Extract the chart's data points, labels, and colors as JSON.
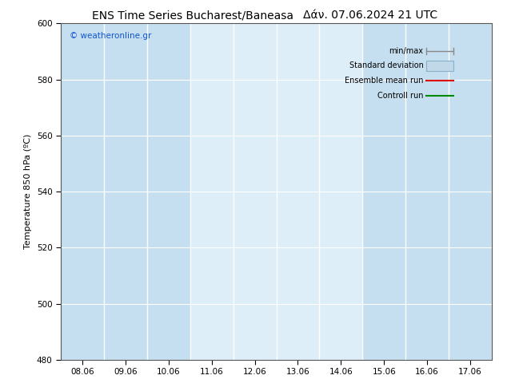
{
  "title_left": "ENS Time Series Bucharest/Baneasa",
  "title_right": "Δάν. 07.06.2024 21 UTC",
  "ylabel": "Temperature 850 hPa (ºC)",
  "ylim": [
    480,
    600
  ],
  "yticks": [
    480,
    500,
    520,
    540,
    560,
    580,
    600
  ],
  "xtick_labels": [
    "08.06",
    "09.06",
    "10.06",
    "11.06",
    "12.06",
    "13.06",
    "14.06",
    "15.06",
    "16.06",
    "17.06"
  ],
  "x_positions": [
    0,
    1,
    2,
    3,
    4,
    5,
    6,
    7,
    8,
    9
  ],
  "watermark": "© weatheronline.gr",
  "bg_color": "#ffffff",
  "plot_bg_color": "#ddeef8",
  "shaded_columns": [
    0,
    1,
    2,
    7,
    8,
    9
  ],
  "shaded_color": "#c5dff0",
  "legend_items": [
    "min/max",
    "Standard deviation",
    "Ensemble mean run",
    "Controll run"
  ],
  "min_max_color": "#888888",
  "std_fill_color": "#c0d8e8",
  "std_edge_color": "#8ab0c8",
  "ensemble_color": "#dd0000",
  "control_color": "#008800",
  "title_fontsize": 10,
  "tick_fontsize": 7.5,
  "ylabel_fontsize": 8,
  "watermark_fontsize": 7.5,
  "watermark_color": "#1155cc",
  "grid_color": "#ffffff",
  "spine_color": "#555555"
}
